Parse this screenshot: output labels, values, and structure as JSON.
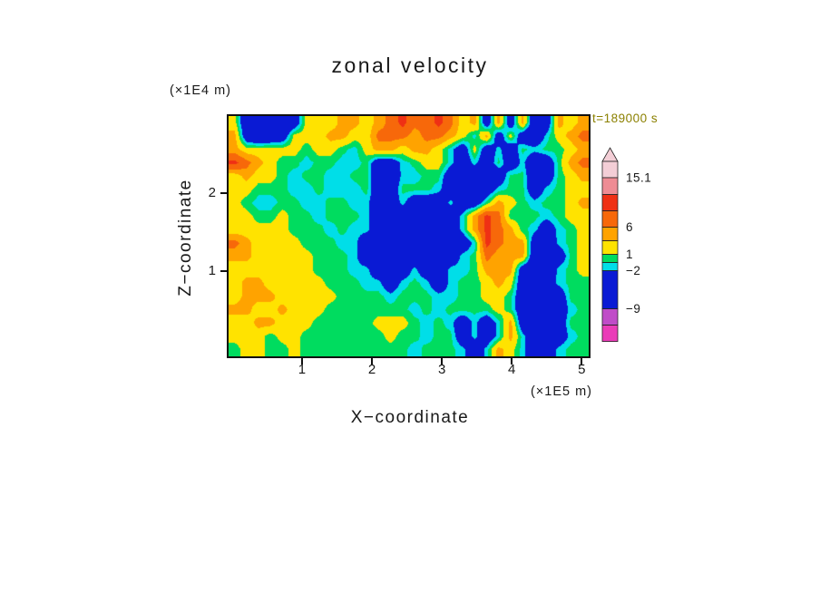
{
  "title": "zonal velocity",
  "timestamp": "t=189000 s",
  "colors": {
    "timestamp": "#8B8000",
    "frame": "#101010",
    "text": "#191919",
    "background": "#FFFFFF"
  },
  "x_axis": {
    "label": "X−coordinate",
    "unit": "(×1E5 m)",
    "tick_labels": [
      "1",
      "2",
      "3",
      "4",
      "5"
    ]
  },
  "z_axis": {
    "label": "Z−coordinate",
    "unit": "(×1E4 m)",
    "tick_labels": [
      "1",
      "2"
    ]
  },
  "colorbar": {
    "arrow_color": "#F3CED6",
    "segments": [
      {
        "from": 15.1,
        "to": 18.1,
        "color": "#F3CED6"
      },
      {
        "from": 12,
        "to": 15.1,
        "color": "#EE8C94"
      },
      {
        "from": 9,
        "to": 12,
        "color": "#EF3014"
      },
      {
        "from": 6,
        "to": 9,
        "color": "#F7680A"
      },
      {
        "from": 3.5,
        "to": 6,
        "color": "#FFA300"
      },
      {
        "from": 1,
        "to": 3.5,
        "color": "#FFE300"
      },
      {
        "from": -0.5,
        "to": 1,
        "color": "#00DC5F"
      },
      {
        "from": -2,
        "to": -0.5,
        "color": "#00DEE8"
      },
      {
        "from": -9,
        "to": -2,
        "color": "#0A1AD4"
      },
      {
        "from": -12,
        "to": -9,
        "color": "#C04CC8"
      },
      {
        "from": -15,
        "to": -12,
        "color": "#EA3CB8"
      }
    ],
    "labels": [
      {
        "value": 15.1,
        "text": "15.1"
      },
      {
        "value": 6,
        "text": "6"
      },
      {
        "value": 1,
        "text": "1"
      },
      {
        "value": -2,
        "text": "−2"
      },
      {
        "value": -9,
        "text": "−9"
      }
    ]
  },
  "chart_data": {
    "type": "heatmap",
    "title": "zonal velocity",
    "xlabel": "X−coordinate (×1E5 m)",
    "ylabel": "Z−coordinate (×1E4 m)",
    "time_label": "t=189000 s",
    "x_range": [
      -0.05,
      5.1
    ],
    "z_range": [
      -0.1,
      3.0
    ],
    "x_ticks": [
      1,
      2,
      3,
      4,
      5
    ],
    "z_ticks": [
      1,
      2
    ],
    "levels": [
      -12,
      -9,
      -2,
      -0.5,
      1,
      3.5,
      6,
      9,
      12,
      15.1
    ],
    "level_colors": [
      "#EA3CB8",
      "#C04CC8",
      "#0A1AD4",
      "#00DEE8",
      "#00DC5F",
      "#FFE300",
      "#FFA300",
      "#F7680A",
      "#EF3014",
      "#EE8C94",
      "#F3CED6"
    ],
    "colorbar_labeled_levels": [
      15.1,
      6,
      1,
      -2,
      -9
    ],
    "grid": {
      "cols": 30,
      "rows": 18,
      "order": "row-major, top row (z max) first",
      "values": [
        [
          2,
          -6,
          -7,
          -7,
          -6,
          -5,
          2,
          2,
          2,
          4.5,
          4.5,
          2,
          4.5,
          7,
          10,
          7,
          7,
          10,
          7,
          2,
          4.5,
          -5,
          4.5,
          -5,
          4.5,
          -6,
          -5,
          4.5,
          2,
          4.5
        ],
        [
          4.5,
          -5,
          -7,
          -6,
          -5,
          2,
          2,
          2,
          4.5,
          4.5,
          2,
          2,
          7,
          7,
          7,
          4.5,
          7,
          7,
          4.5,
          2,
          -1.2,
          4.5,
          -5,
          2,
          -5,
          -6,
          -1.2,
          2,
          4.5,
          7
        ],
        [
          4.5,
          2,
          2,
          2,
          2,
          2,
          0,
          2,
          2,
          0,
          -1.2,
          2,
          4.5,
          4.5,
          2,
          4.5,
          4.5,
          2,
          -1.2,
          -5,
          2,
          -5,
          -1.2,
          -5,
          0,
          -1.2,
          0,
          0,
          2,
          4.5
        ],
        [
          10,
          7,
          4.5,
          2,
          0,
          0,
          -1.2,
          0,
          0,
          -1.2,
          -1.2,
          0,
          -5,
          -5,
          -1.2,
          0,
          2,
          2,
          -1.2,
          -5,
          -1.2,
          -5,
          0,
          -5,
          -1.2,
          -6,
          -5,
          0,
          4.5,
          7
        ],
        [
          2,
          4.5,
          2,
          2,
          0,
          -1.2,
          0,
          0,
          -1.2,
          -1.2,
          0,
          0,
          -5,
          -6,
          -1.2,
          -1.2,
          0,
          0,
          -5,
          -6,
          -5,
          -6,
          -5,
          0,
          0,
          -6,
          -5,
          0,
          2,
          4.5
        ],
        [
          2,
          2,
          0,
          0,
          0,
          -1.2,
          -1.2,
          0,
          -1.2,
          -1.2,
          -1.2,
          0,
          -5,
          -5,
          0,
          0,
          0,
          -1.2,
          -5,
          -6,
          -6,
          -5,
          -1.2,
          0,
          0,
          -5,
          -1.2,
          0,
          2,
          2
        ],
        [
          2,
          0,
          -1.2,
          -1.2,
          0,
          0,
          -1.2,
          -1.2,
          0,
          0,
          -1.2,
          -1.2,
          -5,
          -5,
          -1.2,
          -5,
          -5,
          -5,
          -1.2,
          -5,
          -5,
          0,
          4.5,
          2,
          0,
          -1.2,
          0,
          0,
          2,
          4.5
        ],
        [
          2,
          2,
          0,
          0,
          2,
          0,
          0,
          -1.2,
          0,
          0,
          0,
          -1.2,
          -5,
          -6,
          -6,
          -5,
          -6,
          -6,
          -5,
          -1.2,
          4.5,
          10,
          7,
          0,
          0,
          0,
          -1.2,
          0,
          2,
          2
        ],
        [
          2,
          2,
          2,
          2,
          2,
          0,
          0,
          0,
          -1.2,
          0,
          -1.2,
          -1.2,
          -5,
          -6,
          -7,
          -6,
          -6,
          -6,
          -5,
          -1.2,
          4.5,
          10,
          7,
          4.5,
          0,
          -1.2,
          -5,
          -1.2,
          0,
          2
        ],
        [
          7,
          4.5,
          2,
          2,
          2,
          2,
          0,
          0,
          0,
          -1.2,
          -1.2,
          -5,
          -6,
          -7,
          -7,
          -6,
          -6,
          -6,
          -6,
          -5,
          -1.2,
          10,
          7,
          4.5,
          4.5,
          -5,
          -6,
          -1.2,
          0,
          2
        ],
        [
          4.5,
          4.5,
          2,
          2,
          2,
          2,
          2,
          0,
          0,
          0,
          -1.2,
          -5,
          -6,
          -6,
          -6,
          -5,
          -5,
          -6,
          -5,
          -1.2,
          0,
          7,
          4.5,
          4.5,
          4.5,
          -6,
          -6,
          -5,
          0,
          2
        ],
        [
          2,
          2,
          2,
          2,
          2,
          2,
          2,
          0,
          0,
          0,
          -1.2,
          -1.2,
          -5,
          -6,
          -5,
          -1.2,
          -5,
          -5,
          -1.2,
          -1.2,
          0,
          4.5,
          4.5,
          4.5,
          -5,
          -6,
          -6,
          -1.2,
          0,
          2
        ],
        [
          2,
          4.5,
          4.5,
          2,
          2,
          2,
          2,
          2,
          0,
          0,
          0,
          -1.2,
          -1.2,
          -5,
          -1.2,
          0,
          -1.2,
          -5,
          -1.2,
          0,
          0,
          2,
          4.5,
          2,
          -5,
          -6,
          -5,
          -1.2,
          0,
          0
        ],
        [
          2,
          4.5,
          4.5,
          4.5,
          2,
          2,
          2,
          2,
          2,
          0,
          0,
          0,
          0,
          -1.2,
          0,
          0,
          0,
          -1.2,
          -1.2,
          0,
          0,
          2,
          2,
          0,
          -5,
          -6,
          -6,
          -5,
          0,
          0
        ],
        [
          4.5,
          4.5,
          2,
          2,
          4.5,
          2,
          2,
          2,
          0,
          0,
          0,
          0,
          0,
          0,
          0,
          -1.2,
          0,
          -1.2,
          0,
          0,
          0,
          0,
          2,
          0,
          -5,
          -7,
          -6,
          -5,
          -1.2,
          0
        ],
        [
          2,
          2,
          4.5,
          4.5,
          2,
          2,
          2,
          0,
          0,
          0,
          0,
          0,
          2,
          2,
          2,
          0,
          -1.2,
          0,
          -1.2,
          -5,
          -1.2,
          -5,
          -1.2,
          4.5,
          -5,
          -6,
          -6,
          -5,
          0,
          0
        ],
        [
          2,
          2,
          2,
          0,
          2,
          2,
          0,
          0,
          0,
          0,
          0,
          0,
          0,
          2,
          0,
          0,
          -1.2,
          0,
          0,
          -5,
          -1.2,
          -5,
          -1.2,
          4.5,
          -1.2,
          -5,
          -6,
          -5,
          -1.2,
          0
        ],
        [
          0,
          2,
          2,
          0,
          0,
          2,
          0,
          0,
          0,
          0,
          0,
          0,
          0,
          0,
          0,
          -1.2,
          0,
          0,
          0,
          -1.2,
          -5,
          -1.2,
          4.5,
          2,
          -1.2,
          -5,
          -5,
          -1.2,
          0,
          0
        ]
      ]
    }
  }
}
